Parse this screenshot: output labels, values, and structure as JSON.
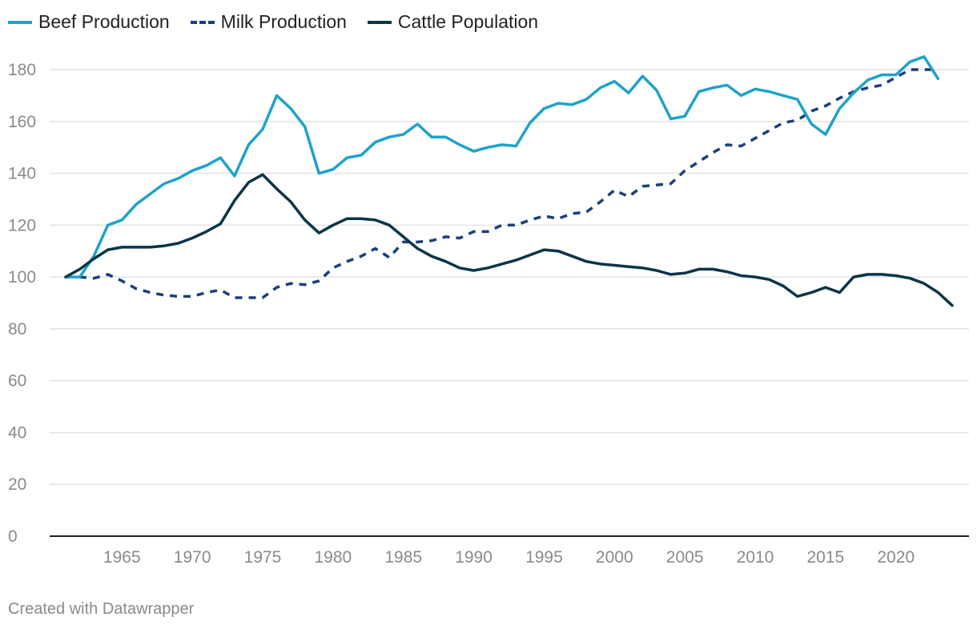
{
  "chart_data": {
    "type": "line",
    "title": "",
    "xlabel": "",
    "ylabel": "",
    "ylim": [
      0,
      180
    ],
    "xlim": [
      1961,
      2024
    ],
    "y_ticks": [
      0,
      20,
      40,
      60,
      80,
      100,
      120,
      140,
      160,
      180
    ],
    "x_ticks": [
      1965,
      1970,
      1975,
      1980,
      1985,
      1990,
      1995,
      2000,
      2005,
      2010,
      2015,
      2020
    ],
    "x": [
      1961,
      1962,
      1963,
      1964,
      1965,
      1966,
      1967,
      1968,
      1969,
      1970,
      1971,
      1972,
      1973,
      1974,
      1975,
      1976,
      1977,
      1978,
      1979,
      1980,
      1981,
      1982,
      1983,
      1984,
      1985,
      1986,
      1987,
      1988,
      1989,
      1990,
      1991,
      1992,
      1993,
      1994,
      1995,
      1996,
      1997,
      1998,
      1999,
      2000,
      2001,
      2002,
      2003,
      2004,
      2005,
      2006,
      2007,
      2008,
      2009,
      2010,
      2011,
      2012,
      2013,
      2014,
      2015,
      2016,
      2017,
      2018,
      2019,
      2020,
      2021,
      2022,
      2023,
      2024
    ],
    "series": [
      {
        "name": "Beef Production",
        "color": "#1ea2cb",
        "dash": "solid",
        "values": [
          100,
          100,
          108,
          120,
          122,
          128,
          132,
          136,
          138,
          141,
          143,
          146,
          139,
          151,
          157,
          170,
          165,
          158,
          140,
          141.5,
          146,
          147,
          152,
          154,
          155,
          159,
          154,
          154,
          151,
          148.5,
          150,
          151,
          150.5,
          159.5,
          165,
          167,
          166.5,
          168.5,
          173,
          175.5,
          171,
          177.5,
          172,
          161,
          162,
          171.5,
          173,
          174,
          170,
          172.5,
          171.5,
          170,
          168.5,
          159,
          155,
          165,
          171,
          176,
          178,
          178,
          183,
          185,
          176.5,
          null
        ]
      },
      {
        "name": "Milk Production",
        "color": "#1c3f7a",
        "dash": "dashed",
        "values": [
          100,
          100,
          99.5,
          101,
          98.5,
          95.5,
          94,
          93,
          92.5,
          92.5,
          94,
          95,
          92,
          92,
          92,
          96,
          97.5,
          97,
          98.5,
          103.5,
          106,
          108,
          111,
          107.5,
          113.5,
          113.5,
          114,
          115.5,
          115,
          117.5,
          117.5,
          120,
          120,
          122,
          123.5,
          122.5,
          124.5,
          125,
          129,
          133.5,
          131,
          135,
          135.5,
          136,
          141,
          144.5,
          148,
          151,
          150.5,
          153.5,
          156.5,
          159.5,
          160.5,
          164,
          166,
          169,
          171.5,
          173,
          174,
          177,
          180,
          180,
          180,
          null
        ]
      },
      {
        "name": "Cattle Population",
        "color": "#0a3548",
        "dash": "solid",
        "values": [
          100,
          103,
          107,
          110.5,
          111.5,
          111.5,
          111.5,
          112,
          113,
          115,
          117.5,
          120.5,
          129.5,
          136.5,
          139.5,
          134,
          129,
          122,
          117,
          120,
          122.5,
          122.5,
          122,
          120,
          115.5,
          111,
          108,
          106,
          103.5,
          102.5,
          103.5,
          105,
          106.5,
          108.5,
          110.5,
          110,
          108,
          106,
          105,
          104.5,
          104,
          103.5,
          102.5,
          101,
          101.5,
          103,
          103,
          102,
          100.5,
          100,
          99,
          96.5,
          92.5,
          94,
          96,
          94,
          100,
          101,
          101,
          100.5,
          99.5,
          97.5,
          94,
          89
        ]
      }
    ]
  },
  "footer": {
    "credit": "Created with Datawrapper"
  }
}
